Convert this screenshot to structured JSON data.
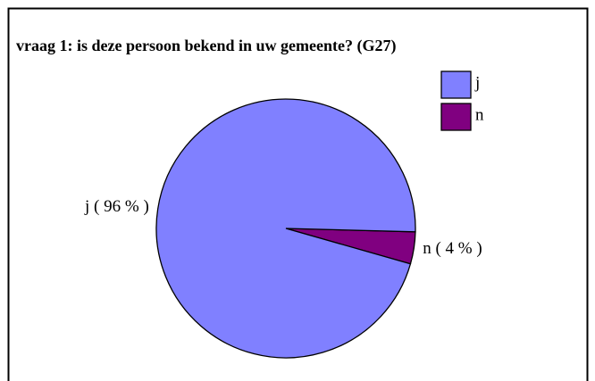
{
  "chart_data": {
    "type": "pie",
    "title": "vraag 1: is deze persoon bekend in uw gemeente? (G27)",
    "categories": [
      "j",
      "n"
    ],
    "values": [
      96,
      4
    ],
    "value_labels": [
      "j ( 96 % )",
      "n ( 4 % )"
    ],
    "colors": [
      "#8080ff",
      "#800080"
    ],
    "legend": "top-right"
  }
}
